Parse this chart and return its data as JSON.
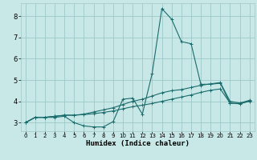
{
  "xlabel": "Humidex (Indice chaleur)",
  "xlim": [
    -0.5,
    23.5
  ],
  "ylim": [
    2.6,
    8.6
  ],
  "yticks": [
    3,
    4,
    5,
    6,
    7,
    8
  ],
  "xticks": [
    0,
    1,
    2,
    3,
    4,
    5,
    6,
    7,
    8,
    9,
    10,
    11,
    12,
    13,
    14,
    15,
    16,
    17,
    18,
    19,
    20,
    21,
    22,
    23
  ],
  "bg_color": "#c8e8e8",
  "grid_color": "#a0c8c8",
  "line_color": "#1a6b6b",
  "line1_x": [
    0,
    1,
    2,
    3,
    4,
    5,
    6,
    7,
    8,
    9,
    10,
    11,
    12,
    13,
    14,
    15,
    16,
    17,
    18,
    19,
    20,
    21,
    22,
    23
  ],
  "line1_y": [
    3.0,
    3.25,
    3.25,
    3.25,
    3.3,
    3.0,
    2.85,
    2.8,
    2.8,
    3.05,
    4.1,
    4.15,
    3.4,
    5.3,
    8.35,
    7.85,
    6.8,
    6.7,
    4.8,
    4.8,
    4.85,
    3.9,
    3.9,
    4.0
  ],
  "line2_x": [
    0,
    1,
    2,
    3,
    4,
    5,
    6,
    7,
    8,
    9,
    10,
    11,
    12,
    13,
    14,
    15,
    16,
    17,
    18,
    19,
    20,
    21,
    22,
    23
  ],
  "line2_y": [
    3.0,
    3.25,
    3.25,
    3.3,
    3.35,
    3.35,
    3.4,
    3.5,
    3.6,
    3.7,
    3.85,
    4.0,
    4.1,
    4.25,
    4.4,
    4.5,
    4.55,
    4.65,
    4.75,
    4.82,
    4.88,
    4.0,
    3.92,
    4.05
  ],
  "line3_x": [
    0,
    1,
    2,
    3,
    4,
    5,
    6,
    7,
    8,
    9,
    10,
    11,
    12,
    13,
    14,
    15,
    16,
    17,
    18,
    19,
    20,
    21,
    22,
    23
  ],
  "line3_y": [
    3.0,
    3.25,
    3.25,
    3.3,
    3.35,
    3.35,
    3.38,
    3.42,
    3.48,
    3.55,
    3.65,
    3.75,
    3.82,
    3.9,
    4.0,
    4.1,
    4.2,
    4.3,
    4.42,
    4.52,
    4.58,
    3.92,
    3.88,
    4.02
  ]
}
